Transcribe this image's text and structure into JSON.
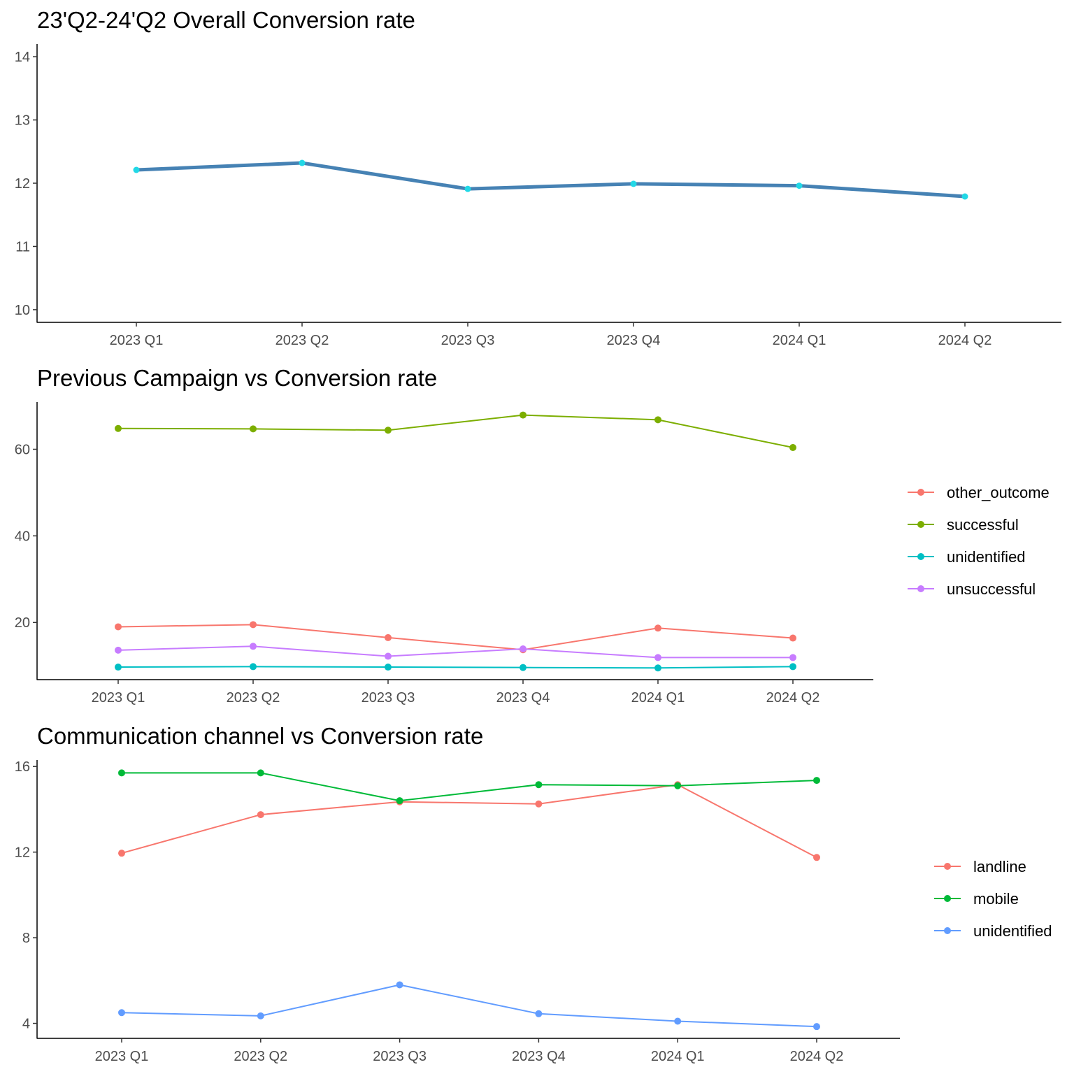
{
  "chart_data": [
    {
      "type": "line",
      "title": "23'Q2-24'Q2 Overall Conversion rate",
      "xlabel": "",
      "ylabel": "",
      "categories": [
        "2023 Q1",
        "2023 Q2",
        "2023 Q3",
        "2023 Q4",
        "2024 Q1",
        "2024 Q2"
      ],
      "ylim": [
        9.8,
        14.2
      ],
      "yticks": [
        10,
        11,
        12,
        13,
        14
      ],
      "legend": "none",
      "grid": false,
      "series": [
        {
          "name": "",
          "color": "#4682b4",
          "point_color": "#22d8e6",
          "values": [
            12.21,
            12.32,
            11.91,
            11.99,
            11.96,
            11.79
          ]
        }
      ]
    },
    {
      "type": "line",
      "title": "Previous Campaign vs Conversion rate",
      "xlabel": "",
      "ylabel": "",
      "categories": [
        "2023 Q1",
        "2023 Q2",
        "2023 Q3",
        "2023 Q4",
        "2024 Q1",
        "2024 Q2"
      ],
      "ylim": [
        6.8,
        70.9
      ],
      "yticks": [
        20,
        40,
        60
      ],
      "legend": "right",
      "grid": false,
      "series": [
        {
          "name": "other_outcome",
          "color": "#f8766d",
          "values": [
            19.0,
            19.5,
            16.5,
            13.7,
            18.7,
            16.4
          ]
        },
        {
          "name": "successful",
          "color": "#7cae00",
          "values": [
            64.8,
            64.7,
            64.4,
            67.9,
            66.8,
            60.4
          ]
        },
        {
          "name": "unidentified",
          "color": "#00bfc4",
          "values": [
            9.7,
            9.8,
            9.7,
            9.6,
            9.5,
            9.8
          ]
        },
        {
          "name": "unsuccessful",
          "color": "#c77cff",
          "values": [
            13.6,
            14.5,
            12.2,
            13.9,
            11.9,
            11.9
          ]
        }
      ]
    },
    {
      "type": "line",
      "title": "Communication channel vs Conversion rate",
      "xlabel": "",
      "ylabel": "",
      "categories": [
        "2023 Q1",
        "2023 Q2",
        "2023 Q3",
        "2023 Q4",
        "2024 Q1",
        "2024 Q2"
      ],
      "ylim": [
        3.3,
        16.3
      ],
      "yticks": [
        4,
        8,
        12,
        16
      ],
      "legend": "right",
      "grid": false,
      "series": [
        {
          "name": "landline",
          "color": "#f8766d",
          "values": [
            11.95,
            13.75,
            14.35,
            14.25,
            15.15,
            11.75
          ]
        },
        {
          "name": "mobile",
          "color": "#00ba38",
          "values": [
            15.7,
            15.7,
            14.4,
            15.15,
            15.1,
            15.35
          ]
        },
        {
          "name": "unidentified",
          "color": "#619cff",
          "values": [
            4.5,
            4.35,
            5.8,
            4.45,
            4.1,
            3.85
          ]
        }
      ]
    }
  ]
}
